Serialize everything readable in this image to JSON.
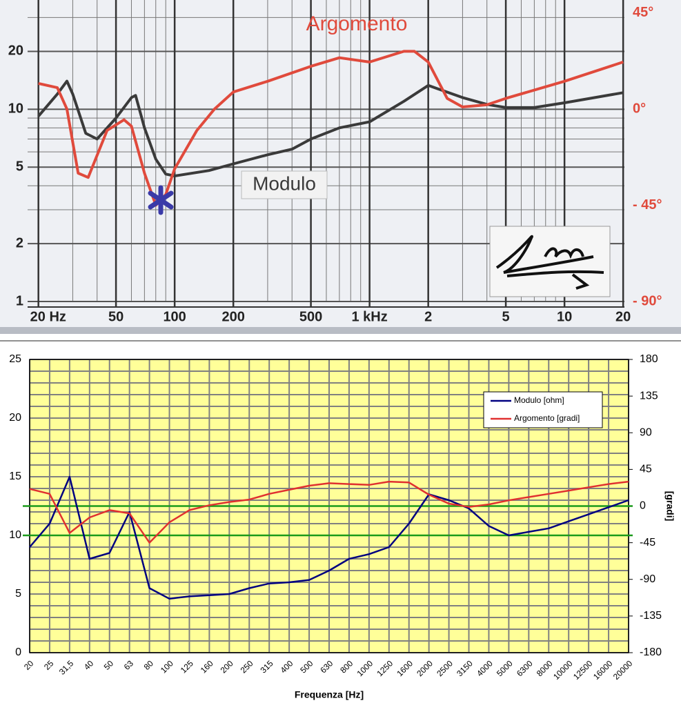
{
  "chart_data": [
    {
      "type": "line",
      "xscale": "log",
      "yscale": "log",
      "grid": true,
      "minor_grid": true,
      "xlim": [
        17.6,
        20300
      ],
      "ylim": [
        1,
        37
      ],
      "y2lim": [
        -90,
        51
      ],
      "xticks": [
        {
          "value": 20,
          "label": "20 Hz"
        },
        50,
        100,
        200,
        500,
        {
          "value": 1000,
          "label": "1 kHz"
        },
        {
          "value": 2000,
          "label": "2"
        },
        {
          "value": 5000,
          "label": "5"
        },
        {
          "value": 10000,
          "label": "10"
        },
        {
          "value": 20000,
          "label": "20"
        }
      ],
      "yticks": [
        1,
        2,
        5,
        10,
        20
      ],
      "y2ticks": [
        {
          "value": -90,
          "label": "- 90°"
        },
        {
          "value": -45,
          "label": "- 45°"
        },
        {
          "value": 0,
          "label": "0°"
        },
        {
          "value": 45,
          "label": "45°"
        }
      ],
      "series": [
        {
          "name": "Modulo",
          "color": "#3a3a3a",
          "x": [
            20,
            25,
            28,
            30,
            35,
            40,
            50,
            60,
            63,
            70,
            80,
            90,
            100,
            150,
            200,
            300,
            400,
            500,
            700,
            1000,
            1500,
            2000,
            3000,
            4000,
            5000,
            7000,
            10000,
            20000
          ],
          "values": [
            9.2,
            12,
            14,
            12,
            7.5,
            7,
            9,
            11.5,
            11.8,
            8,
            5.5,
            4.6,
            4.5,
            4.8,
            5.2,
            5.8,
            6.2,
            7,
            8,
            8.6,
            11,
            13.3,
            11.5,
            10.6,
            10.2,
            10.2,
            10.8,
            12.2
          ]
        },
        {
          "name": "Argomento",
          "color": "#e04a3c",
          "axis": "y2",
          "x": [
            20,
            25,
            28,
            32,
            36,
            45,
            55,
            60,
            70,
            80,
            90,
            100,
            130,
            160,
            200,
            300,
            500,
            700,
            1000,
            1500,
            1700,
            2000,
            2500,
            3000,
            4000,
            5000,
            10000,
            20000
          ],
          "values": [
            12,
            10,
            0,
            -30,
            -32,
            -10,
            -5,
            -8,
            -30,
            -45,
            -40,
            -28,
            -10,
            0,
            8,
            13,
            20,
            24,
            22,
            27,
            27,
            22,
            5,
            1,
            2,
            5,
            13,
            22
          ]
        }
      ]
    },
    {
      "type": "line",
      "grid": true,
      "minor_grid_step": 1,
      "legend": "upper right",
      "xlabel": "Frequenza [Hz]",
      "y2label": "[gradi]",
      "categories": [
        "20",
        "25",
        "31,5",
        "40",
        "50",
        "63",
        "80",
        "100",
        "125",
        "160",
        "200",
        "250",
        "315",
        "400",
        "500",
        "630",
        "800",
        "1000",
        "1250",
        "1600",
        "2000",
        "2500",
        "3150",
        "4000",
        "5000",
        "6300",
        "8000",
        "10000",
        "12500",
        "16000",
        "20000"
      ],
      "ylim": [
        0,
        25
      ],
      "yticks": [
        0,
        5,
        10,
        15,
        20,
        25
      ],
      "y2lim": [
        -180,
        180
      ],
      "y2ticks": [
        -180,
        -135,
        -90,
        -45,
        0,
        45,
        90,
        135,
        180
      ],
      "reference_lines": [
        {
          "axis": "y",
          "value": 10,
          "color": "#1a9a1a"
        },
        {
          "axis": "y2",
          "value": 0,
          "color": "#1a9a1a"
        }
      ],
      "series": [
        {
          "name": "Modulo [ohm]",
          "color": "#000080",
          "values": [
            9,
            11,
            15,
            8,
            8.5,
            12,
            5.5,
            4.6,
            4.8,
            4.9,
            5,
            5.5,
            5.9,
            6,
            6.2,
            7,
            8,
            8.4,
            9,
            11,
            13.5,
            13,
            12.3,
            10.8,
            10,
            10.3,
            10.6,
            11.2,
            11.8,
            12.4,
            13
          ]
        },
        {
          "name": "Argomento [gradi]",
          "color": "#e03030",
          "axis": "y2",
          "values": [
            21,
            15,
            -33,
            -14,
            -5,
            -9,
            -45,
            -20,
            -5,
            1,
            5,
            8,
            15,
            20,
            25,
            28,
            27,
            26,
            30,
            29,
            14,
            3,
            -1,
            2,
            7,
            11,
            15,
            19,
            23,
            27,
            30
          ]
        }
      ]
    }
  ]
}
